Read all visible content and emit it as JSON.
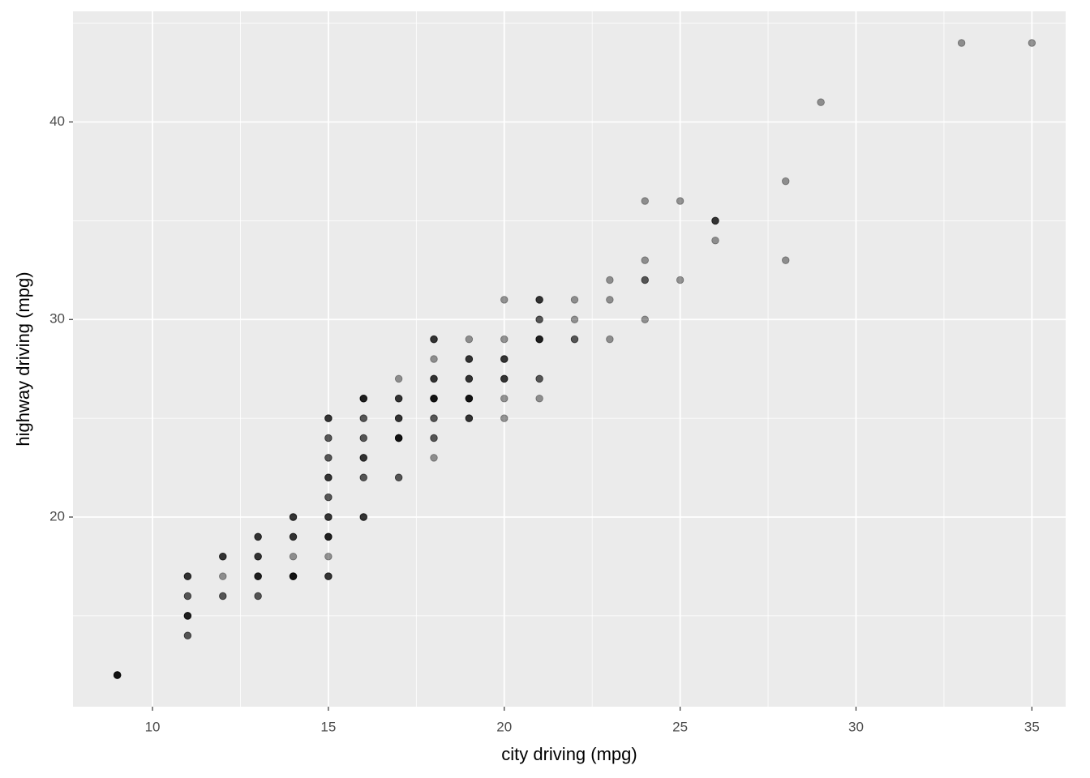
{
  "chart_data": {
    "type": "scatter",
    "x_label": "city driving (mpg)",
    "y_label": "highway driving (mpg)",
    "x": [
      9,
      9,
      9,
      9,
      9,
      11,
      11,
      11,
      11,
      11,
      11,
      11,
      11,
      11,
      11,
      11,
      12,
      12,
      12,
      12,
      12,
      12,
      13,
      13,
      13,
      13,
      13,
      13,
      13,
      13,
      13,
      13,
      13,
      13,
      14,
      14,
      14,
      14,
      14,
      14,
      14,
      14,
      14,
      14,
      14,
      14,
      15,
      15,
      15,
      15,
      15,
      15,
      15,
      15,
      15,
      15,
      15,
      15,
      15,
      15,
      15,
      15,
      15,
      15,
      15,
      15,
      15,
      15,
      15,
      16,
      16,
      16,
      16,
      16,
      16,
      16,
      16,
      16,
      16,
      16,
      16,
      16,
      16,
      16,
      16,
      17,
      17,
      17,
      17,
      17,
      17,
      17,
      17,
      17,
      17,
      17,
      17,
      17,
      17,
      18,
      18,
      18,
      18,
      18,
      18,
      18,
      18,
      18,
      18,
      18,
      18,
      18,
      18,
      18,
      18,
      18,
      19,
      19,
      19,
      19,
      19,
      19,
      19,
      19,
      19,
      19,
      19,
      19,
      19,
      19,
      19,
      20,
      20,
      20,
      20,
      20,
      20,
      20,
      20,
      20,
      20,
      21,
      21,
      21,
      21,
      21,
      21,
      21,
      21,
      21,
      21,
      21,
      21,
      22,
      22,
      22,
      22,
      23,
      23,
      23,
      24,
      24,
      24,
      24,
      24,
      25,
      25,
      26,
      26,
      26,
      26,
      28,
      28,
      29,
      33,
      35
    ],
    "values": [
      12,
      12,
      12,
      12,
      12,
      17,
      17,
      17,
      16,
      16,
      15,
      15,
      15,
      15,
      14,
      14,
      18,
      18,
      18,
      17,
      16,
      16,
      19,
      19,
      19,
      18,
      18,
      18,
      17,
      17,
      17,
      17,
      16,
      16,
      20,
      20,
      20,
      19,
      19,
      19,
      18,
      17,
      17,
      17,
      17,
      17,
      25,
      25,
      25,
      24,
      24,
      23,
      23,
      22,
      22,
      22,
      21,
      21,
      20,
      20,
      20,
      19,
      19,
      19,
      19,
      18,
      17,
      17,
      17,
      26,
      26,
      26,
      26,
      25,
      25,
      24,
      24,
      23,
      23,
      23,
      22,
      22,
      20,
      20,
      20,
      27,
      26,
      26,
      26,
      25,
      25,
      25,
      24,
      24,
      24,
      24,
      24,
      22,
      22,
      29,
      29,
      29,
      28,
      27,
      27,
      27,
      26,
      26,
      26,
      26,
      26,
      25,
      25,
      24,
      24,
      23,
      29,
      28,
      28,
      28,
      27,
      27,
      27,
      26,
      26,
      26,
      26,
      26,
      25,
      25,
      25,
      31,
      29,
      28,
      28,
      28,
      27,
      27,
      27,
      26,
      25,
      31,
      31,
      31,
      30,
      30,
      29,
      29,
      29,
      29,
      27,
      27,
      26,
      31,
      30,
      29,
      29,
      32,
      31,
      29,
      36,
      33,
      32,
      32,
      30,
      36,
      32,
      35,
      35,
      35,
      34,
      37,
      33,
      41,
      44,
      44
    ],
    "color": "#000000",
    "opacity": 0.4,
    "xlim": [
      7.74,
      35.96
    ],
    "ylim": [
      10.4,
      45.6
    ],
    "xticks": [
      10,
      15,
      20,
      25,
      30,
      35
    ],
    "yticks": [
      20,
      30,
      40
    ],
    "x_minor_ticks": [
      12.5,
      17.5,
      22.5,
      27.5,
      32.5
    ],
    "y_minor_ticks": [
      15,
      25,
      35,
      45
    ],
    "grid": true
  }
}
